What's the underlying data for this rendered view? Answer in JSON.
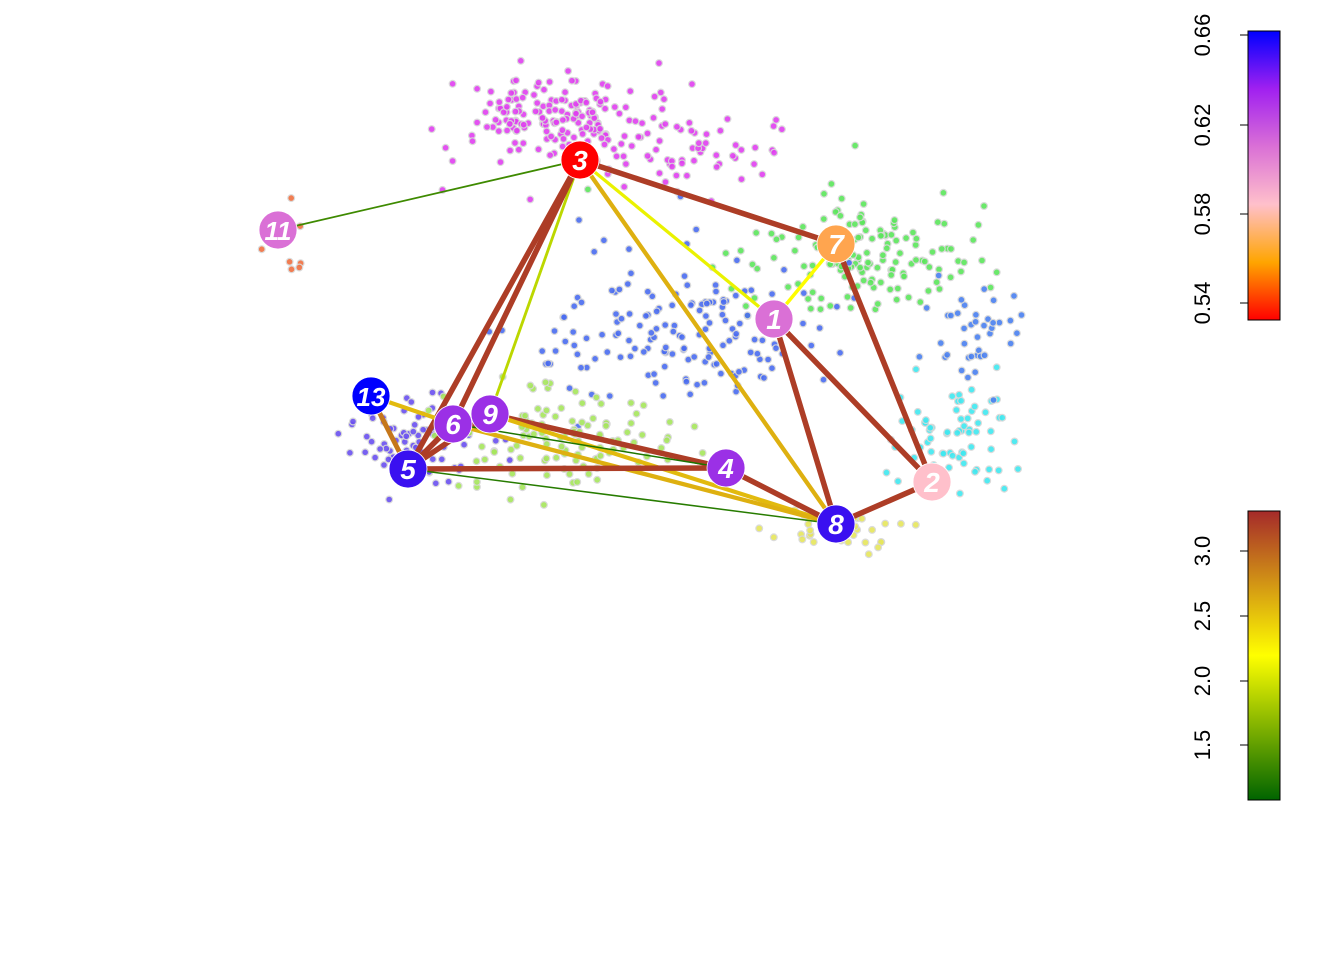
{
  "graph": {
    "nodes": [
      {
        "id": "1",
        "color": "#DA70D6"
      },
      {
        "id": "2",
        "color": "#FFC0CB"
      },
      {
        "id": "3",
        "color": "#FF0000"
      },
      {
        "id": "4",
        "color": "#9B30E6"
      },
      {
        "id": "5",
        "color": "#3A10F0"
      },
      {
        "id": "6",
        "color": "#9B30E6"
      },
      {
        "id": "7",
        "color": "#FFA54F"
      },
      {
        "id": "8",
        "color": "#3A10F0"
      },
      {
        "id": "9",
        "color": "#9B30E6"
      },
      {
        "id": "11",
        "color": "#DA70D6"
      },
      {
        "id": "13",
        "color": "#0000FF"
      }
    ],
    "edges": [
      {
        "from": "3",
        "to": "11",
        "weight": 1.35
      },
      {
        "from": "3",
        "to": "7",
        "weight": 3.2
      },
      {
        "from": "3",
        "to": "1",
        "weight": 2.1
      },
      {
        "from": "3",
        "to": "8",
        "weight": 2.6
      },
      {
        "from": "3",
        "to": "9",
        "weight": 1.9
      },
      {
        "from": "3",
        "to": "6",
        "weight": 3.2
      },
      {
        "from": "3",
        "to": "5",
        "weight": 3.2
      },
      {
        "from": "7",
        "to": "1",
        "weight": 2.2
      },
      {
        "from": "7",
        "to": "2",
        "weight": 3.2
      },
      {
        "from": "1",
        "to": "2",
        "weight": 3.2
      },
      {
        "from": "1",
        "to": "8",
        "weight": 3.2
      },
      {
        "from": "2",
        "to": "8",
        "weight": 3.2
      },
      {
        "from": "13",
        "to": "6",
        "weight": 2.55
      },
      {
        "from": "13",
        "to": "5",
        "weight": 2.9
      },
      {
        "from": "6",
        "to": "5",
        "weight": 3.2
      },
      {
        "from": "9",
        "to": "5",
        "weight": 3.2
      },
      {
        "from": "9",
        "to": "4",
        "weight": 3.2
      },
      {
        "from": "9",
        "to": "8",
        "weight": 2.55
      },
      {
        "from": "6",
        "to": "8",
        "weight": 2.6
      },
      {
        "from": "6",
        "to": "4",
        "weight": 1.2
      },
      {
        "from": "5",
        "to": "4",
        "weight": 3.2
      },
      {
        "from": "5",
        "to": "8",
        "weight": 1.25
      },
      {
        "from": "4",
        "to": "8",
        "weight": 3.2
      }
    ]
  },
  "node_legend": {
    "ticks": [
      "0.54",
      "0.58",
      "0.62",
      "0.66"
    ],
    "stops": [
      "#FF0000",
      "#FFA500",
      "#FFC0CB",
      "#DA70D6",
      "#A020F0",
      "#0000FF"
    ]
  },
  "edge_legend": {
    "ticks": [
      "1.5",
      "2.0",
      "2.5",
      "3.0"
    ],
    "stops": [
      "#006400",
      "#FFFF00",
      "#A52A2A"
    ]
  }
}
